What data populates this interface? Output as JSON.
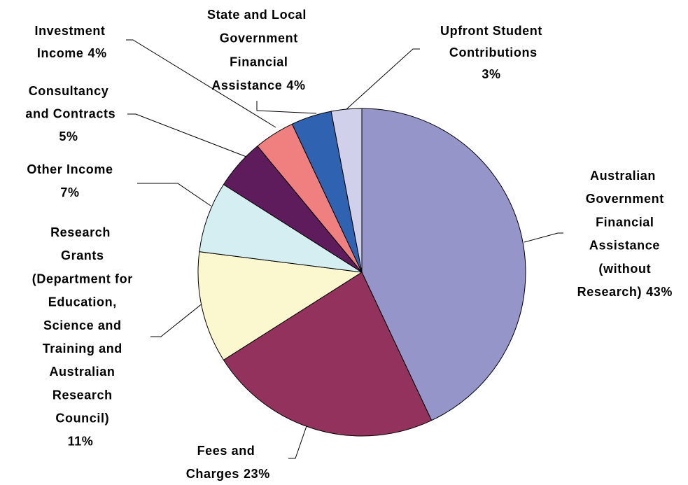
{
  "chart_data": {
    "type": "pie",
    "categories": [
      "Australian Government Financial Assistance (without Research)",
      "Fees and Charges",
      "Research Grants (Department for Education, Science and Training and Australian Research Council)",
      "Other Income",
      "Consultancy and Contracts",
      "Investment Income",
      "State and Local Government Financial Assistance",
      "Upfront Student Contributions"
    ],
    "values": [
      43,
      23,
      11,
      7,
      5,
      4,
      4,
      3
    ],
    "value_labels": [
      "43%",
      "23%",
      "11%",
      "7%",
      "5%",
      "4%",
      "4%",
      "3%"
    ],
    "colors": [
      "#9595c9",
      "#94325e",
      "#fbf7cf",
      "#d4eef2",
      "#5e1c5c",
      "#f08080",
      "#2f62b0",
      "#d0d0ea"
    ]
  }
}
